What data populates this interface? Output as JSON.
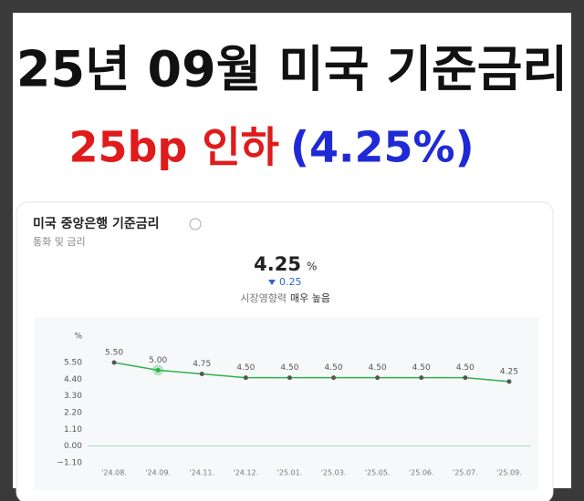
{
  "header": {
    "title": "25년 09월 미국 기준금리",
    "subtitle_red": "25bp 인하",
    "subtitle_blue": "(4.25%)"
  },
  "card": {
    "title": "미국 중앙은행 기준금리",
    "category": "통화 및 금리",
    "current": "4.25",
    "unit": "%",
    "change": "0.25",
    "influence_label": "시장영향력",
    "influence_value": "매우 높음"
  },
  "chart_data": {
    "type": "line",
    "y_unit": "%",
    "categories": [
      "'24.08.",
      "'24.09.",
      "'24.11.",
      "'24.12.",
      "'25.01.",
      "'25.03.",
      "'25.05.",
      "'25.06.",
      "'25.07.",
      "'25.09."
    ],
    "values": [
      5.5,
      5.0,
      4.75,
      4.5,
      4.5,
      4.5,
      4.5,
      4.5,
      4.5,
      4.25
    ],
    "value_labels": [
      "5.50",
      "5.00",
      "4.75",
      "4.50",
      "4.50",
      "4.50",
      "4.50",
      "4.50",
      "4.50",
      "4.25"
    ],
    "color": "#2fb24c",
    "ylim": [
      -1.1,
      5.5
    ],
    "yticks": [
      {
        "value": -1.1,
        "label": "−1.10"
      },
      {
        "value": 0,
        "label": "0.00"
      },
      {
        "value": 1.1,
        "label": "1.10"
      },
      {
        "value": 2.2,
        "label": "2.20"
      },
      {
        "value": 3.3,
        "label": "3.30"
      },
      {
        "value": 4.4,
        "label": "4.40"
      },
      {
        "value": 5.5,
        "label": "5.50"
      }
    ]
  }
}
